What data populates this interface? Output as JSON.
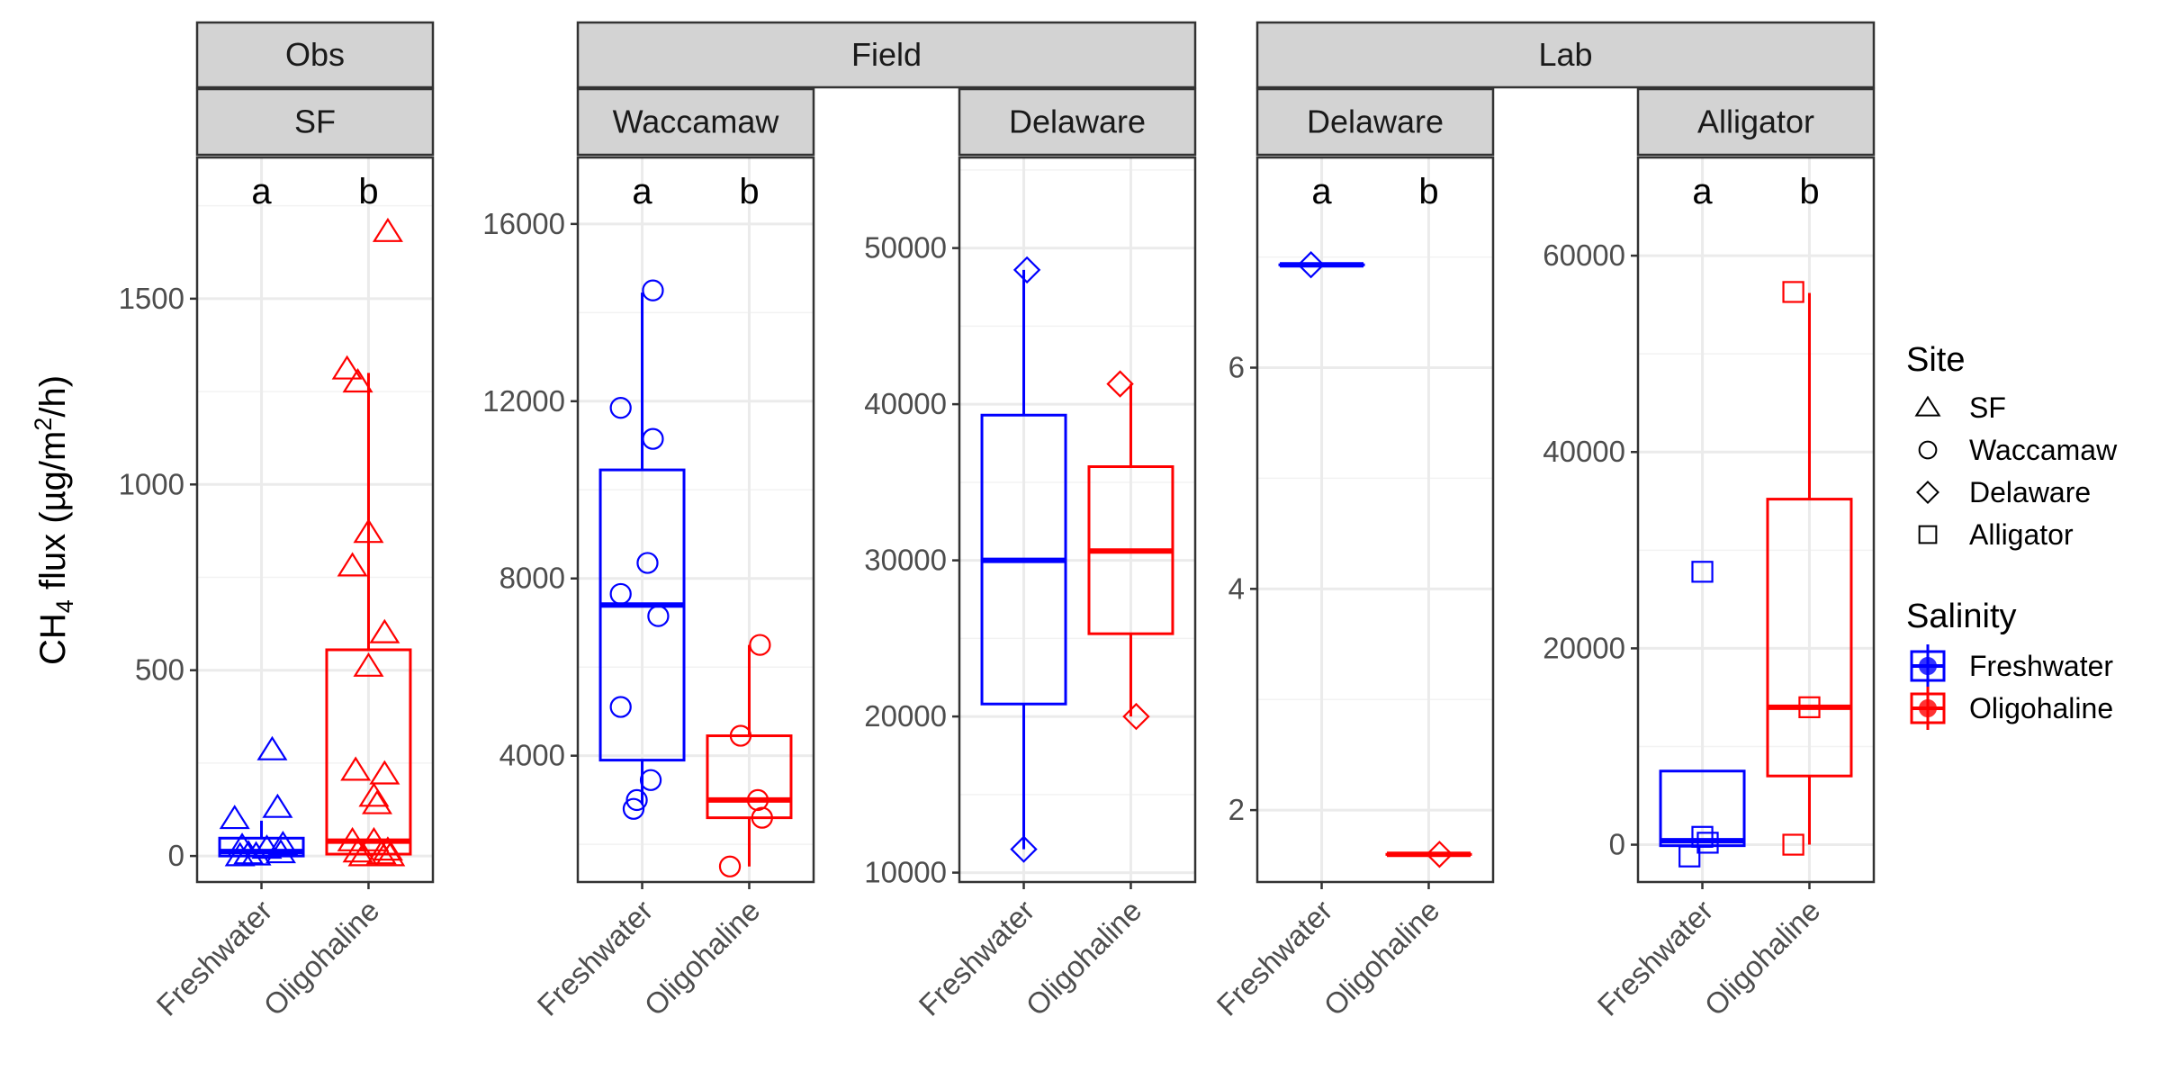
{
  "chart_data": {
    "type": "box",
    "ylabel": {
      "main": "CH",
      "sub": "4",
      "mid": " flux (µg/m",
      "sup": "2",
      "end": "/h)"
    },
    "categories": [
      "Freshwater",
      "Oligohaline"
    ],
    "colors": {
      "Freshwater": "#0000ff",
      "Oligohaline": "#ff0000"
    },
    "panels": [
      {
        "group": "Obs",
        "site": "SF",
        "shape": "triangle",
        "ylim": [
          -70,
          1880
        ],
        "yticks": [
          0,
          500,
          1000,
          1500
        ],
        "letters": [
          "a",
          "b"
        ],
        "boxes": {
          "Freshwater": {
            "q1": 0,
            "median": 12,
            "q3": 48,
            "wlow": 0,
            "whigh": 95
          },
          "Oligohaline": {
            "q1": 5,
            "median": 40,
            "q3": 555,
            "wlow": 0,
            "whigh": 1300
          }
        },
        "points": {
          "Freshwater": [
            [
              -0.25,
              100
            ],
            [
              -0.18,
              25
            ],
            [
              -0.12,
              5
            ],
            [
              -0.05,
              2
            ],
            [
              0.05,
              20
            ],
            [
              0.1,
              285
            ],
            [
              0.15,
              130
            ],
            [
              0.18,
              8
            ],
            [
              0.2,
              30
            ],
            [
              -0.2,
              0
            ]
          ],
          "Oligohaline": [
            [
              -0.2,
              1310
            ],
            [
              -0.1,
              1275
            ],
            [
              -0.15,
              780
            ],
            [
              0.0,
              870
            ],
            [
              0.15,
              600
            ],
            [
              0.0,
              510
            ],
            [
              -0.12,
              230
            ],
            [
              0.15,
              220
            ],
            [
              0.05,
              160
            ],
            [
              0.08,
              140
            ],
            [
              0.05,
              40
            ],
            [
              -0.15,
              40
            ],
            [
              -0.1,
              10
            ],
            [
              0.12,
              5
            ],
            [
              0.18,
              15
            ],
            [
              -0.05,
              0
            ],
            [
              0.2,
              0
            ],
            [
              0.18,
              1680
            ]
          ]
        }
      },
      {
        "group": "Field",
        "site": "Waccamaw",
        "shape": "circle",
        "ylim": [
          1150,
          17500
        ],
        "yticks": [
          4000,
          8000,
          12000,
          16000
        ],
        "letters": [
          "a",
          "b"
        ],
        "boxes": {
          "Freshwater": {
            "q1": 3900,
            "median": 7400,
            "q3": 10450,
            "wlow": 2900,
            "whigh": 14450
          },
          "Oligohaline": {
            "q1": 2600,
            "median": 3000,
            "q3": 4450,
            "wlow": 1500,
            "whigh": 6500
          }
        },
        "points": {
          "Freshwater": [
            [
              0.1,
              14500
            ],
            [
              -0.2,
              11850
            ],
            [
              0.1,
              11150
            ],
            [
              0.05,
              8350
            ],
            [
              -0.2,
              7650
            ],
            [
              0.15,
              7150
            ],
            [
              -0.2,
              5100
            ],
            [
              0.08,
              3450
            ],
            [
              -0.05,
              3000
            ],
            [
              -0.08,
              2800
            ]
          ],
          "Oligohaline": [
            [
              0.1,
              6500
            ],
            [
              -0.08,
              4450
            ],
            [
              0.08,
              3000
            ],
            [
              0.12,
              2600
            ],
            [
              -0.18,
              1500
            ]
          ]
        }
      },
      {
        "group": "Field",
        "site": "Delaware",
        "shape": "diamond",
        "ylim": [
          9400,
          55800
        ],
        "yticks": [
          10000,
          20000,
          30000,
          40000,
          50000
        ],
        "letters": [
          "",
          ""
        ],
        "boxes": {
          "Freshwater": {
            "q1": 20800,
            "median": 30000,
            "q3": 39300,
            "wlow": 11500,
            "whigh": 48600
          },
          "Oligohaline": {
            "q1": 25300,
            "median": 30600,
            "q3": 36000,
            "wlow": 20000,
            "whigh": 41300
          }
        },
        "points": {
          "Freshwater": [
            [
              0.03,
              48600
            ],
            [
              0.0,
              11500
            ]
          ],
          "Oligohaline": [
            [
              -0.1,
              41300
            ],
            [
              0.05,
              20000
            ]
          ]
        }
      },
      {
        "group": "Lab",
        "site": "Delaware",
        "shape": "diamond",
        "ylim": [
          1.35,
          7.9
        ],
        "yticks": [
          2,
          4,
          6
        ],
        "letters": [
          "a",
          "b"
        ],
        "boxes": {
          "Freshwater": {
            "q1": 6.93,
            "median": 6.93,
            "q3": 6.93,
            "wlow": 6.93,
            "whigh": 6.93
          },
          "Oligohaline": {
            "q1": 1.6,
            "median": 1.6,
            "q3": 1.6,
            "wlow": 1.6,
            "whigh": 1.6
          }
        },
        "points": {
          "Freshwater": [
            [
              -0.1,
              6.93
            ]
          ],
          "Oligohaline": [
            [
              0.1,
              1.6
            ]
          ]
        }
      },
      {
        "group": "Lab",
        "site": "Alligator",
        "shape": "square",
        "ylim": [
          -3800,
          70000
        ],
        "yticks": [
          0,
          20000,
          40000,
          60000
        ],
        "letters": [
          "a",
          "b"
        ],
        "boxes": {
          "Freshwater": {
            "q1": -100,
            "median": 400,
            "q3": 7500,
            "wlow": -100,
            "whigh": 7500
          },
          "Oligohaline": {
            "q1": 7000,
            "median": 14000,
            "q3": 35200,
            "wlow": 0,
            "whigh": 56200
          }
        },
        "points": {
          "Freshwater": [
            [
              0.0,
              27800
            ],
            [
              -0.12,
              -1200
            ],
            [
              0.05,
              200
            ],
            [
              0.0,
              800
            ]
          ],
          "Oligohaline": [
            [
              -0.15,
              56300
            ],
            [
              0.0,
              14000
            ],
            [
              -0.15,
              0
            ]
          ]
        }
      }
    ],
    "strip_groups": [
      "Obs",
      "Field",
      "Lab"
    ],
    "legend": {
      "site_title": "Site",
      "sites": [
        {
          "label": "SF",
          "shape": "triangle"
        },
        {
          "label": "Waccamaw",
          "shape": "circle"
        },
        {
          "label": "Delaware",
          "shape": "diamond"
        },
        {
          "label": "Alligator",
          "shape": "square"
        }
      ],
      "salinity_title": "Salinity",
      "salinity": [
        {
          "label": "Freshwater",
          "color": "#0000ff"
        },
        {
          "label": "Oligohaline",
          "color": "#ff0000"
        }
      ]
    }
  }
}
